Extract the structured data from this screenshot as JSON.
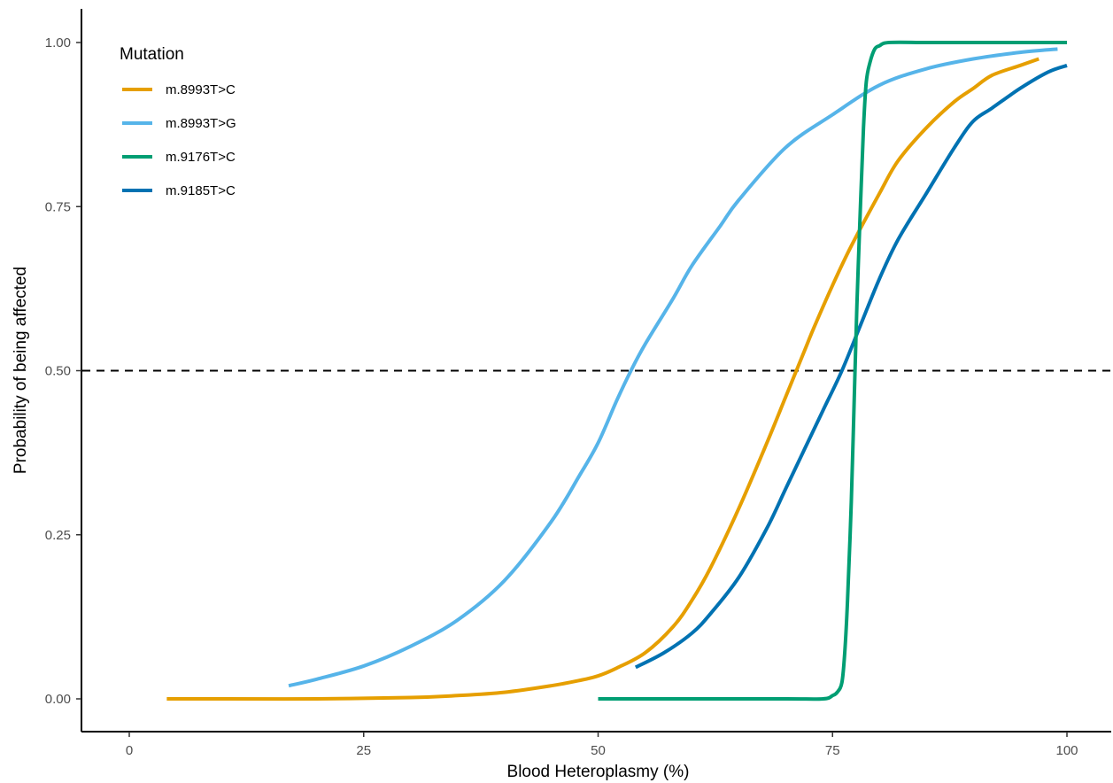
{
  "chart_data": {
    "type": "line",
    "xlabel": "Blood Heteroplasmy (%)",
    "ylabel": "Probability of being affected",
    "xlim": [
      -5,
      105
    ],
    "ylim": [
      -0.05,
      1.05
    ],
    "x_ticks": [
      0,
      25,
      50,
      75,
      100
    ],
    "x_tick_labels": [
      "0",
      "25",
      "50",
      "75",
      "100"
    ],
    "y_ticks": [
      0,
      0.25,
      0.5,
      0.75,
      1.0
    ],
    "y_tick_labels": [
      "0.00",
      "0.25",
      "0.50",
      "0.75",
      "1.00"
    ],
    "grid": false,
    "legend": {
      "title": "Mutation",
      "position": "top-left"
    },
    "reference_line": {
      "y": 0.5,
      "style": "dashed",
      "color": "#000000"
    },
    "series": [
      {
        "name": "m.8993T>C",
        "color": "#E69F00",
        "x": [
          4,
          10,
          20,
          30,
          35,
          40,
          45,
          48,
          50,
          52,
          55,
          58,
          60,
          62,
          65,
          68,
          70,
          72,
          73,
          75,
          77,
          80,
          82,
          85,
          88,
          90,
          92,
          95,
          97
        ],
        "y": [
          0.0,
          0.0,
          0.0,
          0.002,
          0.005,
          0.01,
          0.02,
          0.028,
          0.035,
          0.047,
          0.07,
          0.11,
          0.15,
          0.2,
          0.29,
          0.39,
          0.46,
          0.53,
          0.565,
          0.63,
          0.69,
          0.77,
          0.82,
          0.87,
          0.91,
          0.93,
          0.95,
          0.965,
          0.975
        ]
      },
      {
        "name": "m.8993T>G",
        "color": "#56B4E9",
        "x": [
          17,
          20,
          25,
          30,
          35,
          40,
          45,
          48,
          50,
          52,
          53.5,
          55,
          58,
          60,
          63,
          65,
          70,
          75,
          80,
          85,
          90,
          95,
          99
        ],
        "y": [
          0.02,
          0.03,
          0.05,
          0.08,
          0.12,
          0.18,
          0.27,
          0.34,
          0.39,
          0.455,
          0.5,
          0.54,
          0.61,
          0.66,
          0.72,
          0.76,
          0.84,
          0.89,
          0.935,
          0.96,
          0.975,
          0.985,
          0.99
        ]
      },
      {
        "name": "m.9176T>C",
        "color": "#009E73",
        "x": [
          50,
          60,
          70,
          74,
          75,
          75.5,
          76,
          76.3,
          76.6,
          77,
          77.3,
          77.6,
          78,
          78.3,
          78.6,
          79,
          79.5,
          80,
          81,
          85,
          90,
          100
        ],
        "y": [
          0.0,
          0.0,
          0.0,
          0.0,
          0.005,
          0.01,
          0.025,
          0.07,
          0.15,
          0.3,
          0.45,
          0.6,
          0.76,
          0.87,
          0.94,
          0.97,
          0.99,
          0.995,
          1.0,
          1.0,
          1.0,
          1.0
        ]
      },
      {
        "name": "m.9185T>C",
        "color": "#0072B2",
        "x": [
          54,
          57,
          60,
          62,
          65,
          68,
          70,
          72,
          74,
          76,
          78,
          80,
          82,
          85,
          88,
          90,
          92,
          95,
          98,
          100
        ],
        "y": [
          0.048,
          0.07,
          0.1,
          0.13,
          0.185,
          0.26,
          0.32,
          0.38,
          0.44,
          0.5,
          0.57,
          0.64,
          0.7,
          0.77,
          0.84,
          0.88,
          0.9,
          0.93,
          0.955,
          0.965
        ]
      }
    ]
  }
}
